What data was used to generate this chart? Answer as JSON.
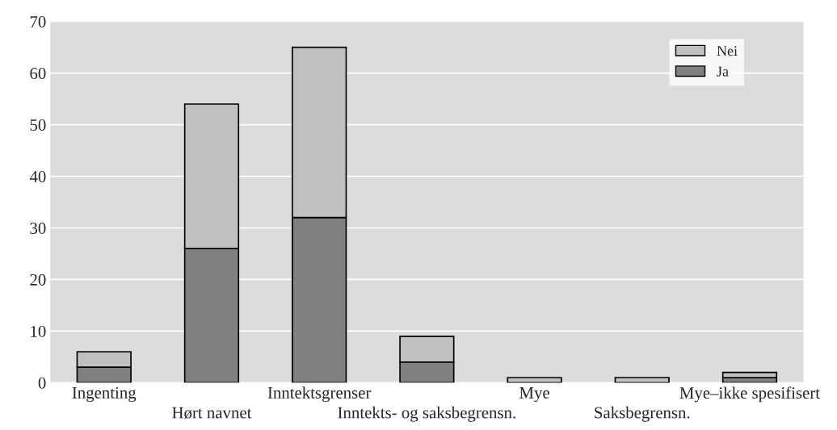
{
  "chart_data": {
    "type": "bar",
    "stacked": true,
    "categories": [
      "Ingenting",
      "Hørt navnet",
      "Inntektsgrenser",
      "Inntekts- og saksbegrensn.",
      "Mye",
      "Saksbegrensn.",
      "Mye–ikke spesifisert"
    ],
    "series": [
      {
        "name": "Ja",
        "color": "#808080",
        "values": [
          3,
          26,
          32,
          4,
          0,
          0,
          1
        ]
      },
      {
        "name": "Nei",
        "color": "#c0c0c0",
        "values": [
          3,
          28,
          33,
          5,
          1,
          1,
          1
        ]
      }
    ],
    "ylim": [
      0,
      70
    ],
    "yticks": [
      0,
      10,
      20,
      30,
      40,
      50,
      60,
      70
    ],
    "grid": "y",
    "legend": "top right"
  }
}
